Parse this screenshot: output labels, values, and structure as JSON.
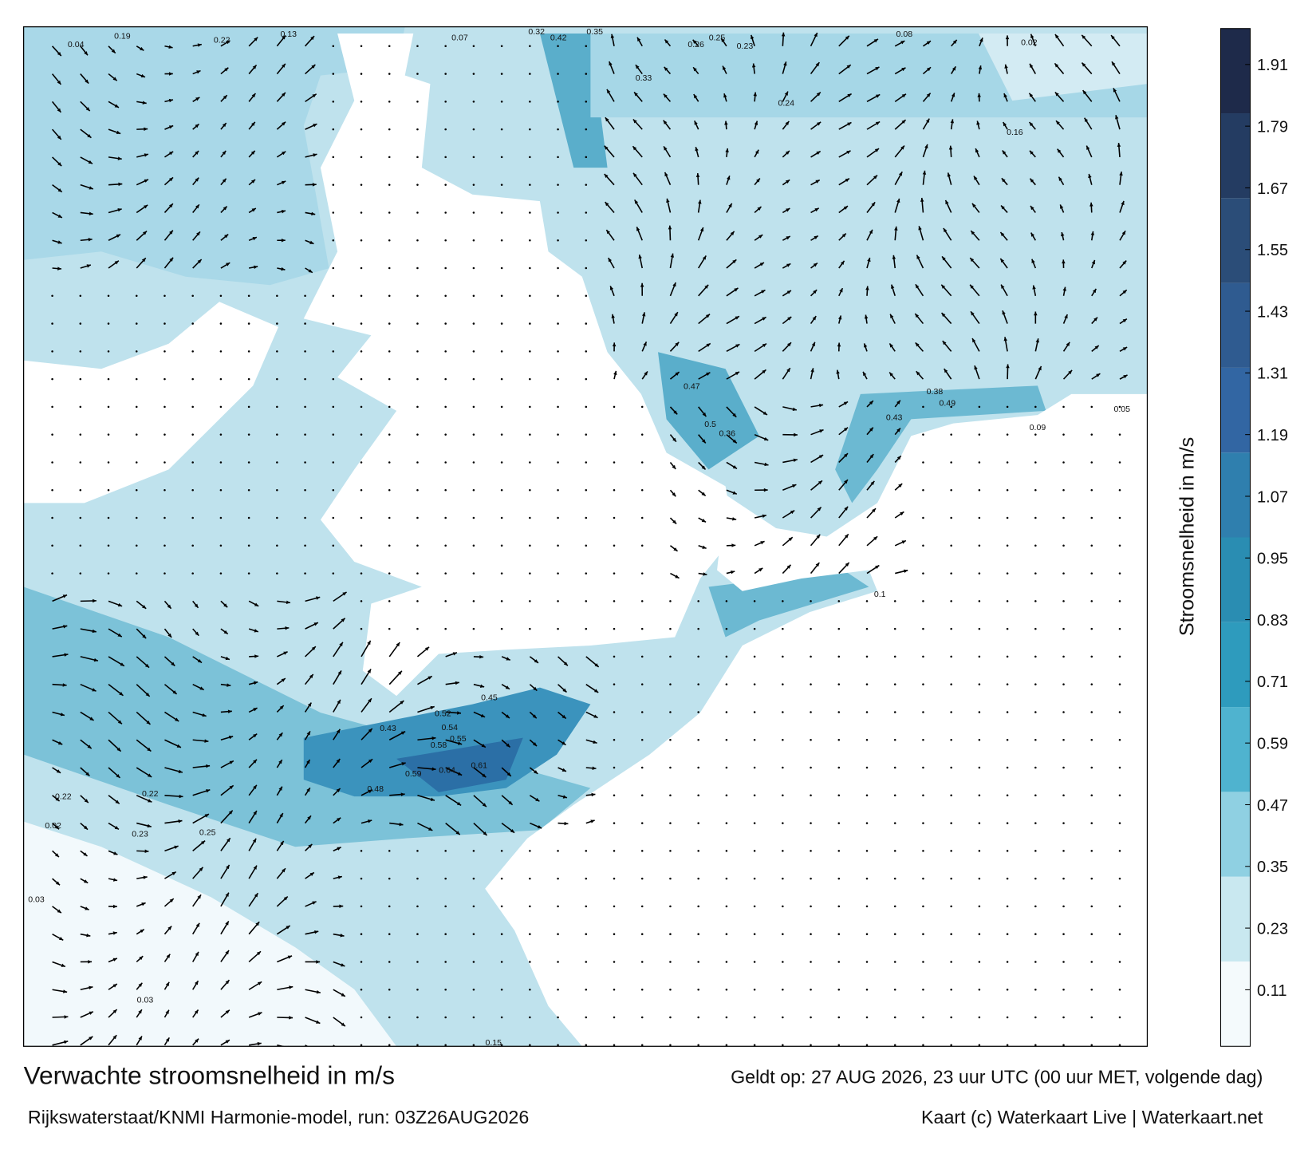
{
  "chart_data": {
    "type": "current-map",
    "title": "Verwachte stroomsnelheid in m/s",
    "valid_time": "Geldt op: 27 AUG 2026, 23 uur UTC (00 uur MET, volgende dag)",
    "model": "Rijkswaterstaat/KNMI Harmonie-model, run: 03Z26AUG2026",
    "credit": "Kaart (c) Waterkaart Live | Waterkaart.net",
    "colorbar": {
      "label": "Stroomsnelheid in m/s",
      "lim": [
        0,
        1.98
      ],
      "ticks": [
        0.11,
        0.23,
        0.35,
        0.47,
        0.59,
        0.71,
        0.83,
        0.95,
        1.07,
        1.19,
        1.31,
        1.43,
        1.55,
        1.67,
        1.79,
        1.91
      ],
      "colors": [
        "#f4fafc",
        "#c9e8f0",
        "#8fd0e2",
        "#4fb3cf",
        "#2e9bbd",
        "#2a8db2",
        "#2f7fae",
        "#3266a3",
        "#2f5b90",
        "#2b4d78",
        "#243c62",
        "#1e2a4a"
      ]
    },
    "current_labels": [
      0.04,
      0.19,
      0.22,
      0.13,
      0.07,
      0.32,
      0.42,
      0.35,
      0.26,
      0.25,
      0.23,
      0.08,
      0.02,
      0.24,
      0.33,
      0.16,
      0.47,
      0.5,
      0.38,
      0.49,
      0.43,
      0.36,
      0.64,
      0.61,
      0.58,
      0.59,
      0.48,
      0.43,
      0.55,
      0.52,
      0.54,
      0.45,
      0.22,
      0.22,
      0.25,
      0.23,
      0.03,
      0.03,
      0.15,
      0.02,
      0.1,
      0.09,
      0.05
    ]
  }
}
